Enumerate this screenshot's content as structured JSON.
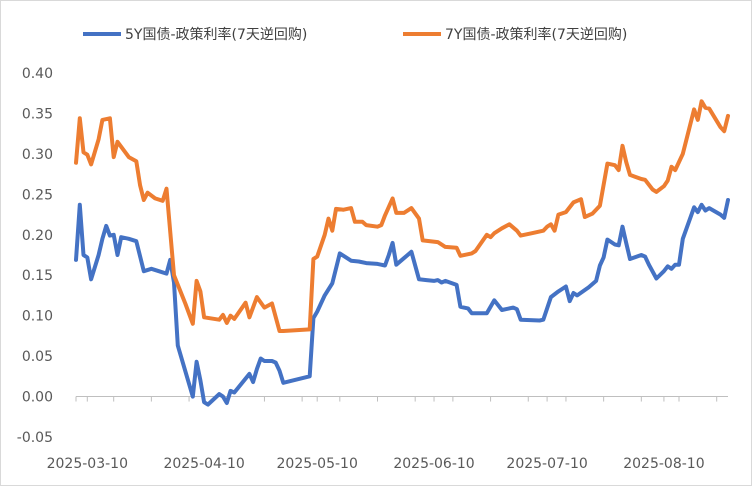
{
  "chart_data": {
    "type": "line",
    "title": "",
    "xlabel": "",
    "ylabel": "",
    "ylim": [
      -0.05,
      0.4
    ],
    "yticks": [
      "0.40",
      "0.35",
      "0.30",
      "0.25",
      "0.20",
      "0.15",
      "0.10",
      "0.05",
      "0.00",
      "-0.05"
    ],
    "x_range": [
      "2025-03-07",
      "2025-08-27"
    ],
    "xticks": [
      "2025-03-10",
      "2025-04-10",
      "2025-05-10",
      "2025-06-10",
      "2025-07-10",
      "2025-08-10"
    ],
    "legend_position": "top",
    "grid": false,
    "colors": {
      "5y": "#4472C4",
      "7y": "#ED7D31",
      "axis": "#bfbfbf"
    },
    "series": [
      {
        "name": "5Y国债-政策利率(7天逆回购)",
        "points": [
          [
            "2025-03-07",
            0.169
          ],
          [
            "2025-03-08",
            0.237
          ],
          [
            "2025-03-09",
            0.175
          ],
          [
            "2025-03-10",
            0.172
          ],
          [
            "2025-03-11",
            0.145
          ],
          [
            "2025-03-13",
            0.175
          ],
          [
            "2025-03-14",
            0.195
          ],
          [
            "2025-03-15",
            0.211
          ],
          [
            "2025-03-16",
            0.199
          ],
          [
            "2025-03-17",
            0.2
          ],
          [
            "2025-03-18",
            0.175
          ],
          [
            "2025-03-19",
            0.197
          ],
          [
            "2025-03-21",
            0.195
          ],
          [
            "2025-03-23",
            0.192
          ],
          [
            "2025-03-25",
            0.155
          ],
          [
            "2025-03-27",
            0.158
          ],
          [
            "2025-03-29",
            0.155
          ],
          [
            "2025-03-31",
            0.152
          ],
          [
            "2025-04-01",
            0.169
          ],
          [
            "2025-04-02",
            0.141
          ],
          [
            "2025-04-03",
            0.063
          ],
          [
            "2025-04-07",
            0.0
          ],
          [
            "2025-04-08",
            0.043
          ],
          [
            "2025-04-09",
            0.02
          ],
          [
            "2025-04-10",
            -0.007
          ],
          [
            "2025-04-11",
            -0.01
          ],
          [
            "2025-04-14",
            0.003
          ],
          [
            "2025-04-15",
            0.0
          ],
          [
            "2025-04-16",
            -0.008
          ],
          [
            "2025-04-17",
            0.007
          ],
          [
            "2025-04-18",
            0.005
          ],
          [
            "2025-04-22",
            0.028
          ],
          [
            "2025-04-23",
            0.018
          ],
          [
            "2025-04-24",
            0.034
          ],
          [
            "2025-04-25",
            0.047
          ],
          [
            "2025-04-26",
            0.044
          ],
          [
            "2025-04-28",
            0.044
          ],
          [
            "2025-04-29",
            0.042
          ],
          [
            "2025-04-30",
            0.032
          ],
          [
            "2025-05-01",
            0.017
          ],
          [
            "2025-05-08",
            0.025
          ],
          [
            "2025-05-09",
            0.097
          ],
          [
            "2025-05-10",
            0.105
          ],
          [
            "2025-05-12",
            0.125
          ],
          [
            "2025-05-14",
            0.14
          ],
          [
            "2025-05-16",
            0.177
          ],
          [
            "2025-05-19",
            0.168
          ],
          [
            "2025-05-21",
            0.167
          ],
          [
            "2025-05-23",
            0.165
          ],
          [
            "2025-05-26",
            0.164
          ],
          [
            "2025-05-28",
            0.162
          ],
          [
            "2025-05-29",
            0.175
          ],
          [
            "2025-05-30",
            0.19
          ],
          [
            "2025-05-31",
            0.163
          ],
          [
            "2025-06-02",
            0.171
          ],
          [
            "2025-06-04",
            0.179
          ],
          [
            "2025-06-06",
            0.145
          ],
          [
            "2025-06-08",
            0.144
          ],
          [
            "2025-06-10",
            0.143
          ],
          [
            "2025-06-11",
            0.144
          ],
          [
            "2025-06-12",
            0.141
          ],
          [
            "2025-06-13",
            0.143
          ],
          [
            "2025-06-16",
            0.138
          ],
          [
            "2025-06-17",
            0.111
          ],
          [
            "2025-06-19",
            0.109
          ],
          [
            "2025-06-20",
            0.103
          ],
          [
            "2025-06-24",
            0.103
          ],
          [
            "2025-06-26",
            0.119
          ],
          [
            "2025-06-28",
            0.107
          ],
          [
            "2025-07-01",
            0.11
          ],
          [
            "2025-07-02",
            0.108
          ],
          [
            "2025-07-03",
            0.095
          ],
          [
            "2025-07-08",
            0.094
          ],
          [
            "2025-07-09",
            0.095
          ],
          [
            "2025-07-11",
            0.123
          ],
          [
            "2025-07-13",
            0.13
          ],
          [
            "2025-07-15",
            0.136
          ],
          [
            "2025-07-16",
            0.118
          ],
          [
            "2025-07-17",
            0.128
          ],
          [
            "2025-07-18",
            0.125
          ],
          [
            "2025-07-21",
            0.135
          ],
          [
            "2025-07-23",
            0.143
          ],
          [
            "2025-07-24",
            0.162
          ],
          [
            "2025-07-25",
            0.172
          ],
          [
            "2025-07-26",
            0.194
          ],
          [
            "2025-07-28",
            0.188
          ],
          [
            "2025-07-29",
            0.187
          ],
          [
            "2025-07-30",
            0.21
          ],
          [
            "2025-07-31",
            0.19
          ],
          [
            "2025-08-01",
            0.17
          ],
          [
            "2025-08-04",
            0.175
          ],
          [
            "2025-08-05",
            0.173
          ],
          [
            "2025-08-06",
            0.163
          ],
          [
            "2025-08-08",
            0.146
          ],
          [
            "2025-08-10",
            0.155
          ],
          [
            "2025-08-11",
            0.161
          ],
          [
            "2025-08-12",
            0.158
          ],
          [
            "2025-08-13",
            0.163
          ],
          [
            "2025-08-14",
            0.163
          ],
          [
            "2025-08-15",
            0.195
          ],
          [
            "2025-08-18",
            0.234
          ],
          [
            "2025-08-19",
            0.228
          ],
          [
            "2025-08-20",
            0.237
          ],
          [
            "2025-08-21",
            0.23
          ],
          [
            "2025-08-22",
            0.233
          ],
          [
            "2025-08-25",
            0.225
          ],
          [
            "2025-08-26",
            0.221
          ],
          [
            "2025-08-27",
            0.243
          ]
        ]
      },
      {
        "name": "7Y国债-政策利率(7天逆回购)",
        "points": [
          [
            "2025-03-07",
            0.289
          ],
          [
            "2025-03-08",
            0.344
          ],
          [
            "2025-03-09",
            0.302
          ],
          [
            "2025-03-10",
            0.299
          ],
          [
            "2025-03-11",
            0.287
          ],
          [
            "2025-03-13",
            0.318
          ],
          [
            "2025-03-14",
            0.342
          ],
          [
            "2025-03-16",
            0.344
          ],
          [
            "2025-03-17",
            0.296
          ],
          [
            "2025-03-18",
            0.315
          ],
          [
            "2025-03-21",
            0.296
          ],
          [
            "2025-03-23",
            0.291
          ],
          [
            "2025-03-24",
            0.261
          ],
          [
            "2025-03-25",
            0.243
          ],
          [
            "2025-03-26",
            0.252
          ],
          [
            "2025-03-28",
            0.245
          ],
          [
            "2025-03-30",
            0.242
          ],
          [
            "2025-03-31",
            0.257
          ],
          [
            "2025-04-02",
            0.15
          ],
          [
            "2025-04-05",
            0.115
          ],
          [
            "2025-04-07",
            0.09
          ],
          [
            "2025-04-08",
            0.143
          ],
          [
            "2025-04-09",
            0.13
          ],
          [
            "2025-04-10",
            0.098
          ],
          [
            "2025-04-14",
            0.095
          ],
          [
            "2025-04-15",
            0.101
          ],
          [
            "2025-04-16",
            0.091
          ],
          [
            "2025-04-17",
            0.1
          ],
          [
            "2025-04-18",
            0.096
          ],
          [
            "2025-04-21",
            0.116
          ],
          [
            "2025-04-22",
            0.098
          ],
          [
            "2025-04-24",
            0.123
          ],
          [
            "2025-04-26",
            0.11
          ],
          [
            "2025-04-28",
            0.115
          ],
          [
            "2025-04-30",
            0.081
          ],
          [
            "2025-05-01",
            0.081
          ],
          [
            "2025-05-08",
            0.083
          ],
          [
            "2025-05-09",
            0.17
          ],
          [
            "2025-05-10",
            0.173
          ],
          [
            "2025-05-12",
            0.2
          ],
          [
            "2025-05-13",
            0.22
          ],
          [
            "2025-05-14",
            0.205
          ],
          [
            "2025-05-15",
            0.232
          ],
          [
            "2025-05-17",
            0.231
          ],
          [
            "2025-05-19",
            0.233
          ],
          [
            "2025-05-20",
            0.216
          ],
          [
            "2025-05-22",
            0.216
          ],
          [
            "2025-05-23",
            0.212
          ],
          [
            "2025-05-26",
            0.21
          ],
          [
            "2025-05-27",
            0.212
          ],
          [
            "2025-05-28",
            0.224
          ],
          [
            "2025-05-30",
            0.245
          ],
          [
            "2025-05-31",
            0.227
          ],
          [
            "2025-06-02",
            0.227
          ],
          [
            "2025-06-04",
            0.233
          ],
          [
            "2025-06-06",
            0.22
          ],
          [
            "2025-06-07",
            0.193
          ],
          [
            "2025-06-11",
            0.191
          ],
          [
            "2025-06-13",
            0.185
          ],
          [
            "2025-06-16",
            0.184
          ],
          [
            "2025-06-17",
            0.174
          ],
          [
            "2025-06-20",
            0.177
          ],
          [
            "2025-06-21",
            0.18
          ],
          [
            "2025-06-24",
            0.2
          ],
          [
            "2025-06-25",
            0.197
          ],
          [
            "2025-06-26",
            0.202
          ],
          [
            "2025-06-28",
            0.208
          ],
          [
            "2025-06-30",
            0.213
          ],
          [
            "2025-07-02",
            0.205
          ],
          [
            "2025-07-03",
            0.199
          ],
          [
            "2025-07-06",
            0.202
          ],
          [
            "2025-07-09",
            0.205
          ],
          [
            "2025-07-10",
            0.21
          ],
          [
            "2025-07-11",
            0.213
          ],
          [
            "2025-07-12",
            0.205
          ],
          [
            "2025-07-13",
            0.225
          ],
          [
            "2025-07-15",
            0.228
          ],
          [
            "2025-07-17",
            0.24
          ],
          [
            "2025-07-19",
            0.244
          ],
          [
            "2025-07-20",
            0.222
          ],
          [
            "2025-07-22",
            0.226
          ],
          [
            "2025-07-24",
            0.236
          ],
          [
            "2025-07-26",
            0.288
          ],
          [
            "2025-07-28",
            0.286
          ],
          [
            "2025-07-29",
            0.28
          ],
          [
            "2025-07-30",
            0.31
          ],
          [
            "2025-07-31",
            0.29
          ],
          [
            "2025-08-01",
            0.274
          ],
          [
            "2025-08-04",
            0.269
          ],
          [
            "2025-08-05",
            0.268
          ],
          [
            "2025-08-07",
            0.256
          ],
          [
            "2025-08-08",
            0.253
          ],
          [
            "2025-08-10",
            0.26
          ],
          [
            "2025-08-11",
            0.267
          ],
          [
            "2025-08-12",
            0.284
          ],
          [
            "2025-08-13",
            0.28
          ],
          [
            "2025-08-14",
            0.29
          ],
          [
            "2025-08-15",
            0.3
          ],
          [
            "2025-08-18",
            0.355
          ],
          [
            "2025-08-19",
            0.342
          ],
          [
            "2025-08-20",
            0.365
          ],
          [
            "2025-08-21",
            0.357
          ],
          [
            "2025-08-22",
            0.356
          ],
          [
            "2025-08-25",
            0.333
          ],
          [
            "2025-08-26",
            0.328
          ],
          [
            "2025-08-27",
            0.347
          ]
        ]
      }
    ]
  }
}
